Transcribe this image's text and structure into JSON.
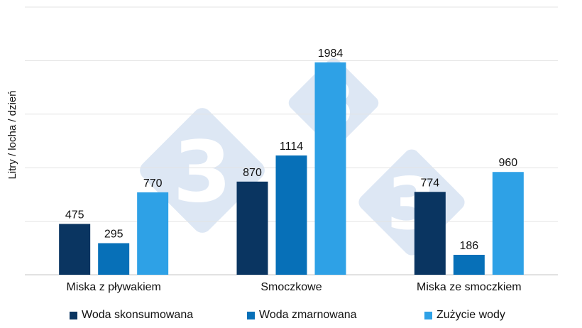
{
  "chart_data": {
    "type": "bar",
    "title": "",
    "xlabel": "",
    "ylabel": "Litry / locha / dzień",
    "ylim": [
      0,
      2500
    ],
    "grid": true,
    "categories": [
      "Miska z pływakiem",
      "Smoczkowe",
      "Miska ze smoczkiem"
    ],
    "series": [
      {
        "name": "Woda skonsumowana",
        "color": "#0a3561",
        "values": [
          475,
          870,
          774
        ]
      },
      {
        "name": "Woda zmarnowana",
        "color": "#0770b8",
        "values": [
          295,
          1114,
          186
        ]
      },
      {
        "name": "Zużycie wody",
        "color": "#2ea1e6",
        "values": [
          770,
          1984,
          960
        ]
      }
    ],
    "legend_position": "bottom",
    "watermark_logo": "333"
  }
}
